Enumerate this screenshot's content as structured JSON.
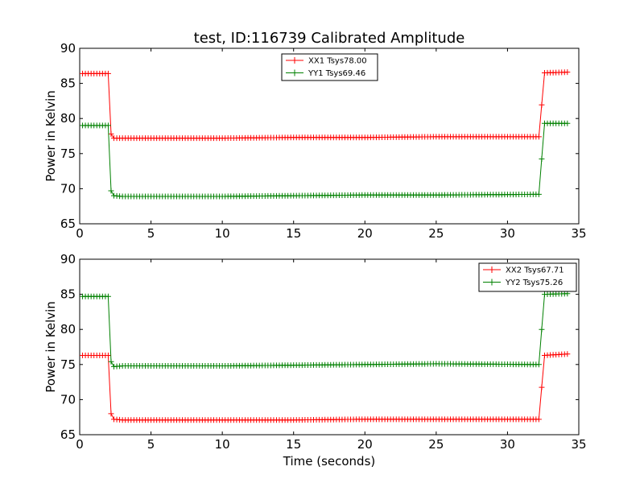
{
  "figure": {
    "title": "test, ID:116739 Calibrated Amplitude",
    "xlabel": "Time (seconds)"
  },
  "chart_data": [
    {
      "type": "line",
      "title": "test, ID:116739 Calibrated Amplitude",
      "xlabel": "",
      "ylabel": "Power in Kelvin",
      "xlim": [
        0,
        35
      ],
      "ylim": [
        65,
        90
      ],
      "xticks": [
        0,
        5,
        10,
        15,
        20,
        25,
        30,
        35
      ],
      "yticks": [
        65,
        70,
        75,
        80,
        85,
        90
      ],
      "grid": false,
      "legend_position": "top-center",
      "marker": "+",
      "series": [
        {
          "name": "XX1 Tsys78.00",
          "color": "#ff0000",
          "points": [
            [
              0.2,
              86.4
            ],
            [
              2.0,
              86.4
            ],
            [
              2.2,
              77.8
            ],
            [
              2.4,
              77.2
            ],
            [
              3,
              77.2
            ],
            [
              10,
              77.2
            ],
            [
              15,
              77.3
            ],
            [
              20,
              77.3
            ],
            [
              25,
              77.4
            ],
            [
              32.2,
              77.4
            ],
            [
              32.6,
              86.5
            ],
            [
              34.2,
              86.6
            ]
          ]
        },
        {
          "name": "YY1 Tsys69.46",
          "color": "#008000",
          "points": [
            [
              0.2,
              79.0
            ],
            [
              2.0,
              79.0
            ],
            [
              2.2,
              69.7
            ],
            [
              2.4,
              69.0
            ],
            [
              3,
              68.9
            ],
            [
              10,
              68.9
            ],
            [
              15,
              69.0
            ],
            [
              20,
              69.1
            ],
            [
              25,
              69.1
            ],
            [
              32.2,
              69.2
            ],
            [
              32.6,
              79.3
            ],
            [
              34.2,
              79.3
            ]
          ]
        }
      ]
    },
    {
      "type": "line",
      "title": "",
      "xlabel": "Time (seconds)",
      "ylabel": "Power in Kelvin",
      "xlim": [
        0,
        35
      ],
      "ylim": [
        65,
        90
      ],
      "xticks": [
        0,
        5,
        10,
        15,
        20,
        25,
        30,
        35
      ],
      "yticks": [
        65,
        70,
        75,
        80,
        85,
        90
      ],
      "grid": false,
      "legend_position": "top-right",
      "marker": "+",
      "series": [
        {
          "name": "XX2 Tsys67.71",
          "color": "#ff0000",
          "points": [
            [
              0.2,
              76.3
            ],
            [
              2.0,
              76.3
            ],
            [
              2.2,
              68.0
            ],
            [
              2.4,
              67.2
            ],
            [
              3,
              67.1
            ],
            [
              10,
              67.1
            ],
            [
              15,
              67.1
            ],
            [
              20,
              67.2
            ],
            [
              25,
              67.2
            ],
            [
              32.2,
              67.2
            ],
            [
              32.6,
              76.3
            ],
            [
              34.2,
              76.5
            ]
          ]
        },
        {
          "name": "YY2 Tsys75.26",
          "color": "#008000",
          "points": [
            [
              0.2,
              84.7
            ],
            [
              2.0,
              84.7
            ],
            [
              2.2,
              75.4
            ],
            [
              2.4,
              74.7
            ],
            [
              3,
              74.8
            ],
            [
              10,
              74.8
            ],
            [
              15,
              74.9
            ],
            [
              20,
              75.0
            ],
            [
              25,
              75.1
            ],
            [
              32.2,
              75.0
            ],
            [
              32.6,
              85.0
            ],
            [
              34.2,
              85.1
            ]
          ]
        }
      ]
    }
  ]
}
